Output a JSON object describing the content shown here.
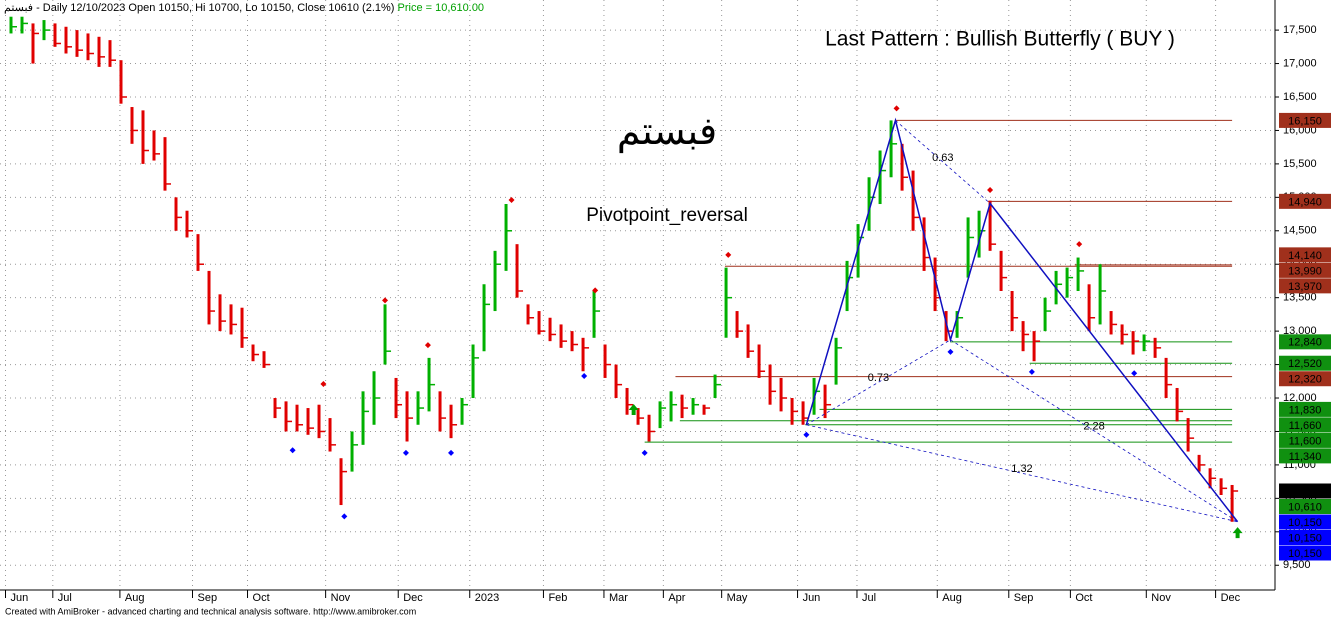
{
  "chart_data": {
    "type": "ohlc",
    "header": "فبستم - Daily 12/10/2023 Open 10150, Hi 10700, Lo 10150, Close 10610 (2.1%)",
    "header_price": "Price = 10,610.00",
    "title": "Last Pattern : Bullish Butterfly ( BUY )",
    "symbol": "فبستم",
    "subtitle": "Pivotpoint_reversal",
    "footer": "Created with AmiBroker - advanced charting and technical analysis software. http://www.amibroker.com",
    "up_color": "#00b000",
    "down_color": "#e00000",
    "grid": true,
    "xlim": [
      -1,
      114.9
    ],
    "ylim": [
      9130,
      17950
    ],
    "xticks": [
      {
        "value": -0.5,
        "label": "Jun"
      },
      {
        "value": 3.8,
        "label": "Jul"
      },
      {
        "value": 9.9,
        "label": "Aug"
      },
      {
        "value": 16.5,
        "label": "Sep"
      },
      {
        "value": 21.5,
        "label": "Oct"
      },
      {
        "value": 28.6,
        "label": "Nov"
      },
      {
        "value": 35.2,
        "label": "Dec"
      },
      {
        "value": 41.7,
        "label": "2023"
      },
      {
        "value": 48.4,
        "label": "Feb"
      },
      {
        "value": 53.9,
        "label": "Mar"
      },
      {
        "value": 59.3,
        "label": "Apr"
      },
      {
        "value": 64.6,
        "label": "May"
      },
      {
        "value": 71.5,
        "label": "Jun"
      },
      {
        "value": 76.9,
        "label": "Jul"
      },
      {
        "value": 84.2,
        "label": "Aug"
      },
      {
        "value": 90.7,
        "label": "Sep"
      },
      {
        "value": 96.3,
        "label": "Oct"
      },
      {
        "value": 103.2,
        "label": "Nov"
      },
      {
        "value": 109.5,
        "label": "Dec"
      }
    ],
    "yticks": [
      {
        "value": 9500,
        "label": "9,500"
      },
      {
        "value": 10000,
        "label": "10,000"
      },
      {
        "value": 10500,
        "label": "10,500"
      },
      {
        "value": 11000,
        "label": "11,000"
      },
      {
        "value": 11500,
        "label": "11,500"
      },
      {
        "value": 12000,
        "label": "12,000"
      },
      {
        "value": 12500,
        "label": "12,500"
      },
      {
        "value": 13000,
        "label": "13,000"
      },
      {
        "value": 13500,
        "label": "13,500"
      },
      {
        "value": 14000,
        "label": "14,000"
      },
      {
        "value": 14500,
        "label": "14,500"
      },
      {
        "value": 15000,
        "label": "15,000"
      },
      {
        "value": 15500,
        "label": "15,500"
      },
      {
        "value": 16000,
        "label": "16,000"
      },
      {
        "value": 16500,
        "label": "16,500"
      },
      {
        "value": 17000,
        "label": "17,000"
      },
      {
        "value": 17500,
        "label": "17,500"
      }
    ],
    "high": [
      17700,
      17700,
      17600,
      17650,
      17600,
      17550,
      17500,
      17450,
      17400,
      17350,
      17050,
      16350,
      16300,
      16000,
      15900,
      15000,
      14800,
      14450,
      13900,
      13550,
      13400,
      13350,
      12800,
      12700,
      12000,
      11950,
      11900,
      11850,
      11900,
      11700,
      11100,
      11500,
      12100,
      12400,
      13400,
      12300,
      12100,
      12100,
      12600,
      12100,
      11900,
      12000,
      12800,
      13700,
      14200,
      14900,
      14300,
      13400,
      13300,
      13200,
      13100,
      13000,
      12900,
      13600,
      12800,
      12500,
      12150,
      11850,
      11750,
      11950,
      12100,
      12050,
      12000,
      11900,
      12350,
      13950,
      13300,
      13100,
      12800,
      12500,
      12300,
      12000,
      11950,
      12300,
      12200,
      12900,
      14050,
      14600,
      15300,
      15700,
      16150,
      15800,
      15400,
      14700,
      14100,
      13300,
      13300,
      14700,
      14800,
      14950,
      14200,
      13600,
      13150,
      13000,
      13500,
      13900,
      13950,
      14100,
      13700,
      14000,
      13300,
      13100,
      13000,
      12950,
      12900,
      12600,
      12150,
      11700,
      11150,
      10950,
      10800,
      10700
    ],
    "low": [
      17450,
      17450,
      17000,
      17350,
      17250,
      17150,
      17100,
      17050,
      16950,
      16950,
      16400,
      15800,
      15500,
      15550,
      15100,
      14500,
      14400,
      13900,
      13100,
      13000,
      12950,
      12750,
      12550,
      12450,
      11700,
      11500,
      11500,
      11450,
      11400,
      11200,
      10400,
      10900,
      11300,
      11600,
      12500,
      11700,
      11350,
      11600,
      11800,
      11500,
      11400,
      11600,
      12000,
      12700,
      13300,
      13900,
      13500,
      13100,
      12950,
      12850,
      12750,
      12700,
      12400,
      12900,
      12300,
      12000,
      11750,
      11600,
      11350,
      11550,
      11650,
      11700,
      11750,
      11750,
      12000,
      12900,
      12900,
      12600,
      12300,
      11900,
      11800,
      11600,
      11600,
      11750,
      11700,
      12200,
      13300,
      13800,
      14500,
      14900,
      15300,
      15100,
      14500,
      13900,
      13300,
      12850,
      12900,
      13800,
      14100,
      14200,
      13600,
      13000,
      12700,
      12550,
      13000,
      13400,
      13500,
      13600,
      13000,
      13100,
      12950,
      12800,
      12650,
      12700,
      12600,
      12000,
      11650,
      11200,
      10900,
      10650,
      10550,
      10150
    ],
    "close": [
      17550,
      17600,
      17450,
      17500,
      17300,
      17250,
      17200,
      17150,
      17100,
      17050,
      16500,
      16000,
      15700,
      15650,
      15200,
      14700,
      14500,
      14000,
      13300,
      13150,
      13100,
      12900,
      12650,
      12500,
      11850,
      11650,
      11600,
      11550,
      11500,
      11300,
      10900,
      11300,
      11800,
      12000,
      12700,
      11900,
      11700,
      11850,
      12200,
      11700,
      11600,
      11900,
      12600,
      13400,
      14000,
      14500,
      13600,
      13200,
      13000,
      12950,
      12850,
      12800,
      12750,
      13300,
      12500,
      12200,
      11900,
      11700,
      11500,
      11850,
      11900,
      11850,
      11900,
      11850,
      12200,
      13500,
      13000,
      12700,
      12400,
      12100,
      12000,
      11800,
      11700,
      12100,
      11900,
      12750,
      13800,
      14400,
      15000,
      15400,
      15800,
      15300,
      14700,
      14100,
      13500,
      13000,
      13200,
      14400,
      14500,
      14300,
      13800,
      13200,
      12950,
      12850,
      13300,
      13700,
      13800,
      13900,
      13200,
      13600,
      13100,
      12950,
      12850,
      12850,
      12750,
      12200,
      11800,
      11400,
      11000,
      10800,
      10650,
      10610
    ],
    "pivots_high": {
      "x": [
        28.4,
        34.0,
        37.9,
        45.5,
        53.1,
        65.2,
        80.5,
        89.0,
        97.1
      ],
      "y": [
        12210,
        13460,
        12790,
        14960,
        13610,
        14140,
        16330,
        15110,
        14300
      ],
      "color": "#e00000"
    },
    "pivots_low": {
      "x": [
        25.6,
        30.3,
        35.9,
        40.0,
        52.1,
        57.6,
        72.3,
        85.4,
        92.8,
        102.1
      ],
      "y": [
        11220,
        10230,
        11180,
        11180,
        12330,
        11180,
        11450,
        12690,
        12390,
        12370
      ],
      "color": "#0000ff"
    },
    "buy_signals": {
      "x": [
        56.6,
        111.5
      ],
      "y": [
        11820,
        9980
      ],
      "color": "#00a000"
    },
    "pattern": {
      "x": [
        72.3,
        80.4,
        85.4,
        89.0,
        111.5
      ],
      "y": [
        11600,
        16150,
        12870,
        14910,
        10150
      ],
      "color": "#1010c0",
      "ratios": [
        0.63,
        0.73,
        2.28,
        1.32
      ]
    },
    "price_labels": [
      {
        "value": 16150,
        "label": "16,150",
        "color": "#a0301c",
        "x": 80.4
      },
      {
        "value": 14940,
        "label": "14,940",
        "color": "#a0301c",
        "x": 88.8
      },
      {
        "value": 14140,
        "label": "14,140",
        "color": "#a0301c"
      },
      {
        "value": 13990,
        "label": "13,990",
        "color": "#a0301c",
        "x": 96.7
      },
      {
        "value": 13970,
        "label": "13,970",
        "color": "#a0301c",
        "x": 64.9
      },
      {
        "value": 12840,
        "label": "12,840",
        "color": "#109010",
        "x": 85.4
      },
      {
        "value": 12520,
        "label": "12,520",
        "color": "#109010",
        "x": 92.6
      },
      {
        "value": 12320,
        "label": "12,320",
        "color": "#a0301c",
        "x": 60.4
      },
      {
        "value": 11830,
        "label": "11,830",
        "color": "#109010",
        "x": 73.5
      },
      {
        "value": 11660,
        "label": "11,660",
        "color": "#109010",
        "x": 60.8
      },
      {
        "value": 11600,
        "label": "11,600",
        "color": "#109010",
        "x": 72.2
      },
      {
        "value": 11340,
        "label": "11,340",
        "color": "#109010",
        "x": 57.6
      },
      {
        "value": 10610,
        "label": "10,610",
        "color": "#000000"
      },
      {
        "value": 10610,
        "label": "10,610",
        "color": "#109010"
      },
      {
        "value": 10150,
        "label": "10,150",
        "color": "#0000ff"
      },
      {
        "value": 10150,
        "label": "10,150",
        "color": "#0000ff"
      },
      {
        "value": 10150,
        "label": "10,150",
        "color": "#0000ff"
      }
    ]
  }
}
